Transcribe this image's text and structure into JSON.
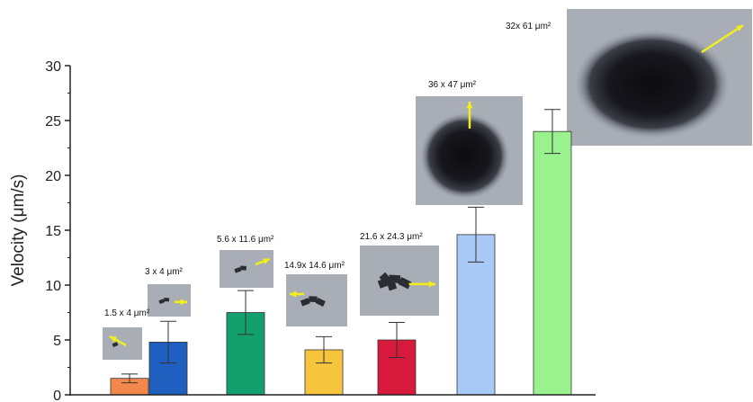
{
  "chart_data": {
    "type": "bar",
    "ylabel": "Velocity (μm/s)",
    "ylim": [
      0,
      30
    ],
    "yticks": [
      0,
      5,
      10,
      15,
      20,
      25,
      30
    ],
    "categories": [
      "1.5 x 4 μm²",
      "3 x 4 μm²",
      "5.6 x 11.6 μm²",
      "14.9x 14.6 μm²",
      "21.6 x 24.3 μm²",
      "36 x 47 μm²",
      "32x 61 μm²"
    ],
    "values": [
      1.5,
      4.8,
      7.5,
      4.1,
      5.0,
      14.6,
      24.0
    ],
    "errors": [
      0.4,
      1.9,
      2.0,
      1.2,
      1.6,
      2.5,
      2.0
    ],
    "colors": [
      "#f4874b",
      "#1f5fbf",
      "#13a06e",
      "#f6c53d",
      "#d71a3b",
      "#a8c8f5",
      "#9af28f"
    ],
    "grid": false,
    "legend": "none"
  }
}
